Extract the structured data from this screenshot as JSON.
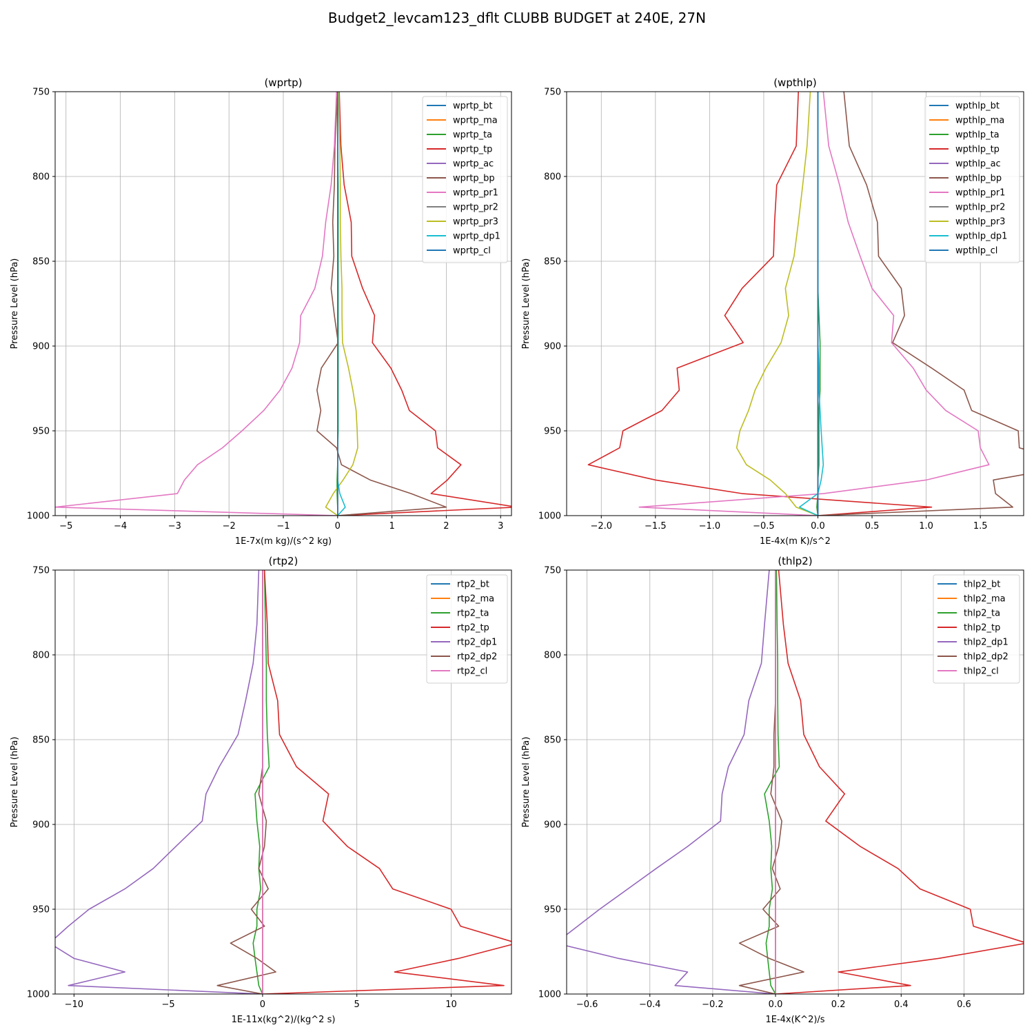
{
  "figure_title": "Budget2_levcam123_dflt CLUBB BUDGET at 240E, 27N",
  "chart_data": [
    {
      "type": "line",
      "title": "(wprtp)",
      "xlabel": "1E-7x(m kg)/(s^2 kg)",
      "ylabel": "Pressure Level (hPa)",
      "xlim": [
        -5.2,
        3.2
      ],
      "ylim": [
        1000,
        750
      ],
      "xticks": [
        -5,
        -4,
        -3,
        -2,
        -1,
        0,
        1,
        2,
        3
      ],
      "xtick_labels": [
        "−5",
        "−4",
        "−3",
        "−2",
        "−1",
        "0",
        "1",
        "2",
        "3"
      ],
      "yticks": [
        750,
        800,
        850,
        900,
        950,
        1000
      ],
      "ytick_labels": [
        "750",
        "800",
        "850",
        "900",
        "950",
        "1000"
      ],
      "grid": true,
      "legend": "upper right",
      "levels": [
        750,
        782,
        805,
        827,
        847,
        866,
        882,
        898,
        913,
        926,
        938,
        950,
        960,
        970,
        979,
        987,
        995,
        1000
      ],
      "series": [
        {
          "name": "wprtp_bt",
          "color": "#1f77b4",
          "values": [
            0,
            0,
            0,
            0,
            0,
            0,
            0,
            0,
            0,
            0,
            0,
            0,
            0,
            0,
            0,
            0,
            0,
            0
          ]
        },
        {
          "name": "wprtp_ma",
          "color": "#ff7f0e",
          "values": [
            0,
            0,
            0,
            0,
            0,
            0,
            0,
            0,
            0,
            0,
            0,
            0,
            0,
            0,
            0,
            0,
            0,
            0
          ]
        },
        {
          "name": "wprtp_ta",
          "color": "#2ca02c",
          "values": [
            0,
            0,
            0.01,
            0.01,
            0.01,
            0.01,
            0.01,
            0.01,
            0.01,
            0.01,
            0.01,
            0.01,
            0,
            0,
            -0.01,
            -0.01,
            0,
            0
          ]
        },
        {
          "name": "wprtp_tp",
          "color": "#d62728",
          "values": [
            0.03,
            0.06,
            0.12,
            0.25,
            0.26,
            0.46,
            0.68,
            0.64,
            0.98,
            1.18,
            1.32,
            1.8,
            1.84,
            2.27,
            2.02,
            1.72,
            3.3,
            0
          ]
        },
        {
          "name": "wprtp_ac",
          "color": "#9467bd",
          "values": [
            0,
            0,
            0,
            0,
            0,
            0,
            0,
            0,
            0,
            0,
            0,
            0,
            0,
            0,
            0,
            0,
            0,
            0
          ]
        },
        {
          "name": "wprtp_bp",
          "color": "#8c564b",
          "values": [
            0,
            -0.05,
            -0.06,
            -0.09,
            -0.07,
            -0.12,
            -0.06,
            0.01,
            -0.3,
            -0.38,
            -0.31,
            -0.38,
            -0.02,
            0.07,
            0.6,
            1.35,
            2.0,
            0
          ]
        },
        {
          "name": "wprtp_pr1",
          "color": "#e377c2",
          "values": [
            -0.02,
            -0.06,
            -0.12,
            -0.22,
            -0.28,
            -0.42,
            -0.68,
            -0.7,
            -0.84,
            -1.06,
            -1.36,
            -1.76,
            -2.12,
            -2.58,
            -2.82,
            -2.95,
            -5.2,
            0
          ]
        },
        {
          "name": "wprtp_pr2",
          "color": "#7f7f7f",
          "values": [
            0,
            0,
            0,
            0,
            0,
            0,
            0,
            0,
            0,
            0,
            0,
            0,
            0,
            0,
            0,
            0,
            0,
            0
          ]
        },
        {
          "name": "wprtp_pr3",
          "color": "#bcbd22",
          "values": [
            0.02,
            0.04,
            0.05,
            0.05,
            0.06,
            0.08,
            0.08,
            0.09,
            0.2,
            0.28,
            0.34,
            0.36,
            0.37,
            0.28,
            0.1,
            -0.08,
            -0.22,
            0
          ]
        },
        {
          "name": "wprtp_dp1",
          "color": "#17becf",
          "values": [
            0,
            0,
            0,
            0,
            0,
            0,
            0,
            0,
            0,
            0,
            0,
            0,
            0,
            0,
            0,
            0.04,
            0.14,
            0
          ]
        },
        {
          "name": "wprtp_cl",
          "color": "#1f77b4",
          "values": [
            0,
            0,
            0,
            0,
            0,
            0,
            0,
            0,
            0,
            0,
            0,
            0,
            0,
            0,
            0,
            0,
            0,
            0
          ]
        }
      ]
    },
    {
      "type": "line",
      "title": "(wpthlp)",
      "xlabel": "1E-4x(m K)/s^2",
      "ylabel": "Pressure Level (hPa)",
      "xlim": [
        -2.32,
        1.9
      ],
      "ylim": [
        1000,
        750
      ],
      "xticks": [
        -2.0,
        -1.5,
        -1.0,
        -0.5,
        0.0,
        0.5,
        1.0,
        1.5
      ],
      "xtick_labels": [
        "−2.0",
        "−1.5",
        "−1.0",
        "−0.5",
        "0.0",
        "0.5",
        "1.0",
        "1.5"
      ],
      "yticks": [
        750,
        800,
        850,
        900,
        950,
        1000
      ],
      "ytick_labels": [
        "750",
        "800",
        "850",
        "900",
        "950",
        "1000"
      ],
      "grid": true,
      "legend": "upper right",
      "levels": [
        750,
        782,
        805,
        827,
        847,
        866,
        882,
        898,
        913,
        926,
        938,
        950,
        960,
        970,
        979,
        987,
        995,
        1000
      ],
      "series": [
        {
          "name": "wpthlp_bt",
          "color": "#1f77b4",
          "values": [
            0,
            0,
            0,
            0,
            0,
            0,
            0,
            0,
            0,
            0,
            0,
            0,
            0,
            0,
            0,
            0,
            0,
            0
          ]
        },
        {
          "name": "wpthlp_ma",
          "color": "#ff7f0e",
          "values": [
            0,
            0,
            0,
            0,
            0,
            0,
            0,
            0,
            0,
            0,
            0,
            0,
            0,
            0,
            0,
            0,
            0,
            0
          ]
        },
        {
          "name": "wpthlp_ta",
          "color": "#2ca02c",
          "values": [
            0,
            0,
            0,
            0,
            0,
            0,
            0.01,
            0.02,
            0.02,
            0.02,
            0.01,
            0.01,
            0.01,
            0.01,
            0,
            0,
            -0.01,
            0
          ]
        },
        {
          "name": "wpthlp_tp",
          "color": "#d62728",
          "values": [
            -0.18,
            -0.2,
            -0.38,
            -0.4,
            -0.41,
            -0.7,
            -0.86,
            -0.69,
            -1.3,
            -1.28,
            -1.44,
            -1.8,
            -1.83,
            -2.12,
            -1.5,
            -0.7,
            1.05,
            0
          ]
        },
        {
          "name": "wpthlp_ac",
          "color": "#9467bd",
          "values": [
            0,
            0,
            0,
            0,
            0,
            0,
            0,
            0,
            0,
            0,
            0,
            0,
            0,
            0,
            0,
            0,
            0,
            0
          ]
        },
        {
          "name": "wpthlp_bp",
          "color": "#8c564b",
          "values": [
            0.24,
            0.29,
            0.45,
            0.55,
            0.56,
            0.77,
            0.8,
            0.69,
            1.05,
            1.35,
            1.42,
            1.85,
            1.86,
            2.4,
            1.62,
            1.64,
            1.8,
            0
          ]
        },
        {
          "name": "wpthlp_pr1",
          "color": "#e377c2",
          "values": [
            0.05,
            0.1,
            0.2,
            0.28,
            0.39,
            0.5,
            0.7,
            0.68,
            0.88,
            1.0,
            1.18,
            1.48,
            1.5,
            1.58,
            1.0,
            0.05,
            -1.65,
            0
          ]
        },
        {
          "name": "wpthlp_pr2",
          "color": "#7f7f7f",
          "values": [
            0,
            0,
            0,
            0,
            0,
            0,
            0,
            0,
            0,
            0,
            0,
            0,
            0,
            0,
            0,
            0,
            0,
            0
          ]
        },
        {
          "name": "wpthlp_pr3",
          "color": "#bcbd22",
          "values": [
            -0.07,
            -0.1,
            -0.14,
            -0.18,
            -0.22,
            -0.3,
            -0.27,
            -0.34,
            -0.48,
            -0.58,
            -0.64,
            -0.72,
            -0.75,
            -0.66,
            -0.44,
            -0.3,
            -0.2,
            0
          ]
        },
        {
          "name": "wpthlp_dp1",
          "color": "#17becf",
          "values": [
            0,
            0,
            0,
            0,
            0,
            0,
            0,
            0,
            0.01,
            0.01,
            0.02,
            0.03,
            0.04,
            0.05,
            0.03,
            0,
            -0.17,
            0
          ]
        },
        {
          "name": "wpthlp_cl",
          "color": "#1f77b4",
          "values": [
            0,
            0,
            0,
            0,
            0,
            0,
            0,
            0,
            0,
            0,
            0,
            0,
            0,
            0,
            0,
            0,
            0,
            0
          ]
        }
      ]
    },
    {
      "type": "line",
      "title": "(rtp2)",
      "xlabel": "1E-11x(kg^2)/(kg^2 s)",
      "ylabel": "Pressure Level (hPa)",
      "xlim": [
        -11.0,
        13.2
      ],
      "ylim": [
        1000,
        750
      ],
      "xticks": [
        -10,
        -5,
        0,
        5,
        10
      ],
      "xtick_labels": [
        "−10",
        "−5",
        "0",
        "5",
        "10"
      ],
      "yticks": [
        750,
        800,
        850,
        900,
        950,
        1000
      ],
      "ytick_labels": [
        "750",
        "800",
        "850",
        "900",
        "950",
        "1000"
      ],
      "grid": true,
      "legend": "upper right",
      "levels": [
        750,
        782,
        805,
        827,
        847,
        866,
        882,
        898,
        913,
        926,
        938,
        950,
        960,
        970,
        979,
        987,
        995,
        1000
      ],
      "series": [
        {
          "name": "rtp2_bt",
          "color": "#1f77b4",
          "values": [
            0,
            0,
            0,
            0,
            0,
            0,
            0,
            0,
            0,
            0,
            0,
            0,
            0,
            0,
            0,
            0,
            0,
            0
          ]
        },
        {
          "name": "rtp2_ma",
          "color": "#ff7f0e",
          "values": [
            0,
            0,
            0,
            0,
            0,
            0,
            0,
            0,
            0,
            0,
            0,
            0,
            0,
            0,
            0,
            0,
            0,
            0
          ]
        },
        {
          "name": "rtp2_ta",
          "color": "#2ca02c",
          "values": [
            0.1,
            0.15,
            0.2,
            0.2,
            0.25,
            0.35,
            -0.4,
            -0.3,
            -0.15,
            -0.2,
            -0.1,
            -0.3,
            -0.3,
            -0.5,
            -0.4,
            -0.3,
            -0.2,
            0
          ]
        },
        {
          "name": "rtp2_tp",
          "color": "#d62728",
          "values": [
            0.1,
            0.25,
            0.3,
            0.8,
            0.9,
            1.8,
            3.5,
            3.2,
            4.5,
            6.2,
            6.9,
            10.0,
            10.5,
            13.5,
            10.4,
            7.0,
            12.8,
            0
          ]
        },
        {
          "name": "rtp2_dp1",
          "color": "#9467bd",
          "values": [
            -0.2,
            -0.3,
            -0.5,
            -0.9,
            -1.3,
            -2.3,
            -3.0,
            -3.2,
            -4.6,
            -5.8,
            -7.3,
            -9.2,
            -10.3,
            -11.3,
            -10.0,
            -7.3,
            -10.3,
            0
          ]
        },
        {
          "name": "rtp2_dp2",
          "color": "#8c564b",
          "values": [
            0,
            0,
            0,
            0,
            0,
            0,
            -0.2,
            0.2,
            0.1,
            -0.2,
            0.3,
            -0.6,
            0.1,
            -1.7,
            -0.3,
            0.7,
            -2.4,
            0
          ]
        },
        {
          "name": "rtp2_cl",
          "color": "#e377c2",
          "values": [
            0,
            0,
            0,
            0,
            0,
            0,
            0,
            0,
            0,
            0,
            0,
            0,
            0,
            0,
            0,
            0,
            0,
            0
          ]
        }
      ]
    },
    {
      "type": "line",
      "title": "(thlp2)",
      "xlabel": "1E-4x(K^2)/s",
      "ylabel": "Pressure Level (hPa)",
      "xlim": [
        -0.665,
        0.79
      ],
      "ylim": [
        1000,
        750
      ],
      "xticks": [
        -0.6,
        -0.4,
        -0.2,
        0.0,
        0.2,
        0.4,
        0.6
      ],
      "xtick_labels": [
        "−0.6",
        "−0.4",
        "−0.2",
        "0.0",
        "0.2",
        "0.4",
        "0.6"
      ],
      "yticks": [
        750,
        800,
        850,
        900,
        950,
        1000
      ],
      "ytick_labels": [
        "750",
        "800",
        "850",
        "900",
        "950",
        "1000"
      ],
      "grid": true,
      "legend": "upper right",
      "levels": [
        750,
        782,
        805,
        827,
        847,
        866,
        882,
        898,
        913,
        926,
        938,
        950,
        960,
        970,
        979,
        987,
        995,
        1000
      ],
      "series": [
        {
          "name": "thlp2_bt",
          "color": "#1f77b4",
          "values": [
            0,
            0,
            0,
            0,
            0,
            0,
            0,
            0,
            0,
            0,
            0,
            0,
            0,
            0,
            0,
            0,
            0,
            0
          ]
        },
        {
          "name": "thlp2_ma",
          "color": "#ff7f0e",
          "values": [
            0,
            0,
            0,
            0,
            0,
            0,
            0,
            0,
            0,
            0,
            0,
            0,
            0,
            0,
            0,
            0,
            0,
            0
          ]
        },
        {
          "name": "thlp2_ta",
          "color": "#2ca02c",
          "values": [
            0.003,
            0.005,
            0.007,
            0.007,
            0.008,
            0.012,
            -0.035,
            -0.02,
            -0.012,
            -0.015,
            -0.01,
            -0.02,
            -0.02,
            -0.03,
            -0.025,
            -0.02,
            -0.015,
            0
          ]
        },
        {
          "name": "thlp2_tp",
          "color": "#d62728",
          "values": [
            0.01,
            0.025,
            0.04,
            0.08,
            0.09,
            0.14,
            0.22,
            0.16,
            0.27,
            0.39,
            0.46,
            0.62,
            0.63,
            0.8,
            0.52,
            0.2,
            0.43,
            0
          ]
        },
        {
          "name": "thlp2_dp1",
          "color": "#9467bd",
          "values": [
            -0.02,
            -0.035,
            -0.045,
            -0.085,
            -0.1,
            -0.15,
            -0.17,
            -0.175,
            -0.28,
            -0.38,
            -0.47,
            -0.56,
            -0.63,
            -0.7,
            -0.5,
            -0.28,
            -0.32,
            0
          ]
        },
        {
          "name": "thlp2_dp2",
          "color": "#8c564b",
          "values": [
            0,
            0,
            0,
            0,
            -0.005,
            -0.005,
            -0.015,
            0.02,
            0.01,
            -0.01,
            0.015,
            -0.04,
            0.01,
            -0.115,
            -0.02,
            0.09,
            -0.115,
            0
          ]
        },
        {
          "name": "thlp2_cl",
          "color": "#e377c2",
          "values": [
            0,
            0,
            0,
            0,
            0,
            0,
            0,
            0,
            0,
            0,
            0,
            0,
            0,
            0,
            0,
            0,
            0,
            0
          ]
        }
      ]
    }
  ]
}
